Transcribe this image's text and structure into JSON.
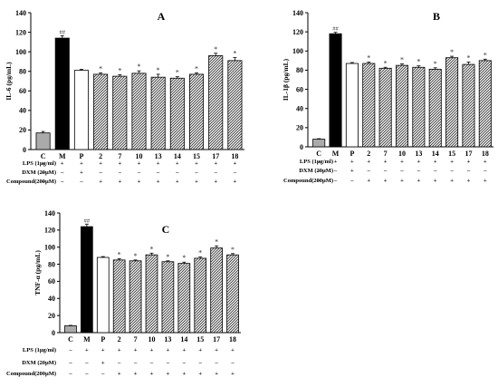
{
  "conditions": [
    {
      "label": "LPS  (1μg/ml)",
      "marks": [
        "–",
        "+",
        "+",
        "+",
        "+",
        "+",
        "+",
        "+",
        "+",
        "+",
        "+"
      ]
    },
    {
      "label": "DXM  (20μM)",
      "marks": [
        "–",
        "–",
        "+",
        "–",
        "–",
        "–",
        "–",
        "–",
        "–",
        "–",
        "–"
      ]
    },
    {
      "label": "Compound(200μM)",
      "marks": [
        "–",
        "–",
        "–",
        "+",
        "+",
        "+",
        "+",
        "+",
        "+",
        "+",
        "+"
      ]
    }
  ],
  "chart_data": [
    {
      "type": "bar",
      "title": "A",
      "ylabel": "IL-6 (pg/mL)",
      "ylim": [
        0,
        140
      ],
      "yticks": [
        0,
        20,
        40,
        60,
        80,
        100,
        120,
        140
      ],
      "categories": [
        "C",
        "M",
        "P",
        "2",
        "7",
        "10",
        "13",
        "14",
        "15",
        "17",
        "18"
      ],
      "values": [
        17,
        114,
        81,
        77,
        75,
        78,
        74,
        73,
        77,
        96,
        91
      ],
      "errors": [
        1.5,
        2.5,
        1,
        1.5,
        1.5,
        2.5,
        3,
        1.5,
        1.5,
        2.5,
        3
      ],
      "annotations": [
        "",
        "##",
        "",
        "*",
        "*",
        "*",
        "*",
        "*",
        "*",
        "*",
        "*"
      ],
      "colors": {
        "C": "#aaaaaa",
        "M": "#000000",
        "P": "#ffffff",
        "compounds": "hatched"
      }
    },
    {
      "type": "bar",
      "title": "B",
      "ylabel": "IL-1β (pg/mL)",
      "ylim": [
        0,
        140
      ],
      "yticks": [
        0,
        20,
        40,
        60,
        80,
        100,
        120,
        140
      ],
      "categories": [
        "C",
        "M",
        "P",
        "2",
        "7",
        "10",
        "13",
        "14",
        "15",
        "17",
        "18"
      ],
      "values": [
        8,
        118,
        87,
        87,
        82,
        85,
        83,
        81,
        93,
        86,
        90
      ],
      "errors": [
        0.5,
        1.5,
        1,
        1.5,
        1,
        1.5,
        1.5,
        1.5,
        1.5,
        2.5,
        1.5
      ],
      "annotations": [
        "",
        "##",
        "",
        "*",
        "*",
        "*",
        "*",
        "*",
        "*",
        "*",
        "*"
      ],
      "colors": {
        "C": "#aaaaaa",
        "M": "#000000",
        "P": "#ffffff",
        "compounds": "hatched"
      }
    },
    {
      "type": "bar",
      "title": "C",
      "ylabel": "TNF-α (pg/mL)",
      "ylim": [
        0,
        140
      ],
      "yticks": [
        0,
        20,
        40,
        60,
        80,
        100,
        120,
        140
      ],
      "categories": [
        "C",
        "M",
        "P",
        "2",
        "7",
        "10",
        "13",
        "14",
        "15",
        "17",
        "18"
      ],
      "values": [
        8,
        124,
        88,
        85,
        84,
        91,
        83,
        81,
        87,
        99,
        91
      ],
      "errors": [
        0.5,
        3,
        1,
        1.5,
        1,
        2,
        1,
        1.5,
        1.5,
        2.5,
        1.5
      ],
      "annotations": [
        "",
        "##",
        "",
        "*",
        "*",
        "*",
        "*",
        "*",
        "*",
        "*",
        "*"
      ],
      "colors": {
        "C": "#aaaaaa",
        "M": "#000000",
        "P": "#ffffff",
        "compounds": "hatched"
      }
    }
  ]
}
